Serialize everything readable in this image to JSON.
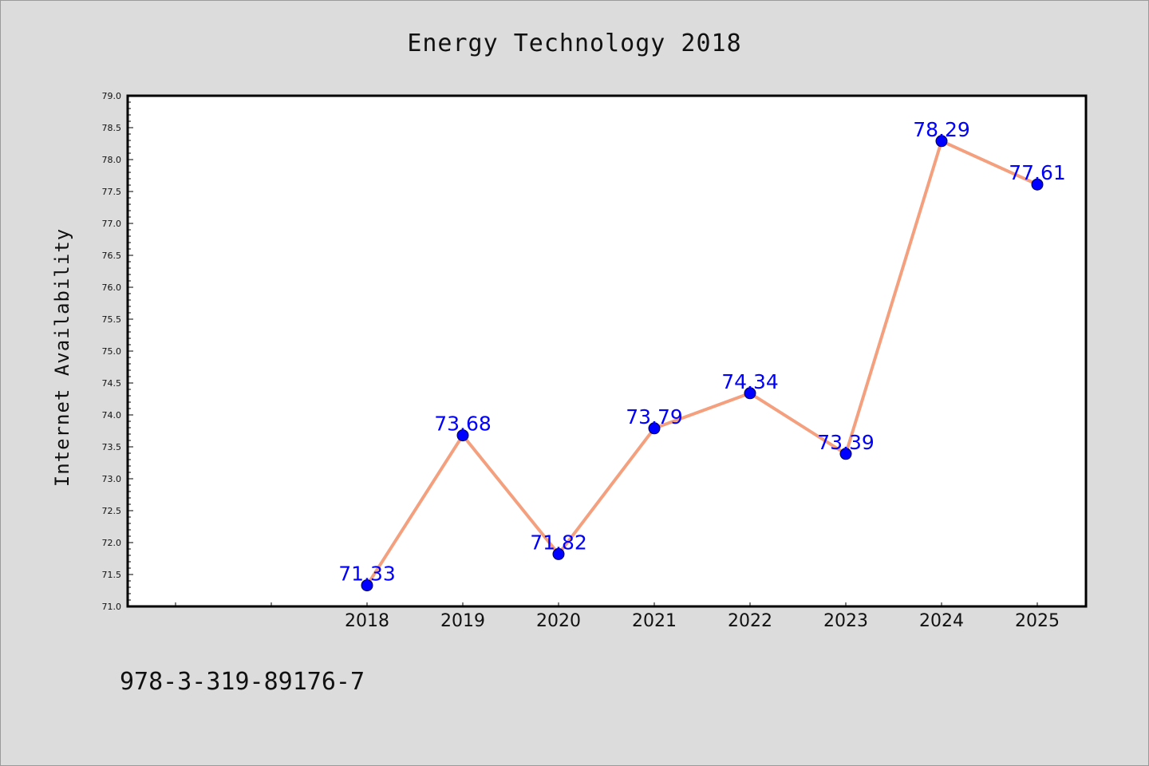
{
  "chart_data": {
    "type": "line",
    "title": "Energy Technology 2018",
    "ylabel": "Internet Availability",
    "xlabel": "",
    "categories": [
      "2018",
      "2019",
      "2020",
      "2021",
      "2022",
      "2023",
      "2024",
      "2025"
    ],
    "x_axis_extra_leading_ticks": 2,
    "series": [
      {
        "values": [
          71.33,
          73.68,
          71.82,
          73.79,
          74.34,
          73.39,
          78.29,
          77.61
        ],
        "labels": [
          "71.33",
          "73.68",
          "71.82",
          "73.79",
          "74.34",
          "73.39",
          "78.29",
          "77.61"
        ],
        "line_color": "#f4a07e",
        "marker_color": "#0000ff"
      }
    ],
    "ylim": [
      71.0,
      79.0
    ],
    "yticks": [
      "71.0",
      "71.5",
      "72.0",
      "72.5",
      "73.0",
      "73.5",
      "74.0",
      "74.5",
      "75.0",
      "75.5",
      "76.0",
      "76.5",
      "77.0",
      "77.5",
      "78.0",
      "78.5",
      "79.0"
    ],
    "grid": false,
    "legend": "none"
  },
  "footer": {
    "isbn": "978-3-319-89176-7"
  },
  "colors": {
    "background": "#dcdcdc",
    "plot_area": "#ffffff",
    "axis": "#000000"
  }
}
